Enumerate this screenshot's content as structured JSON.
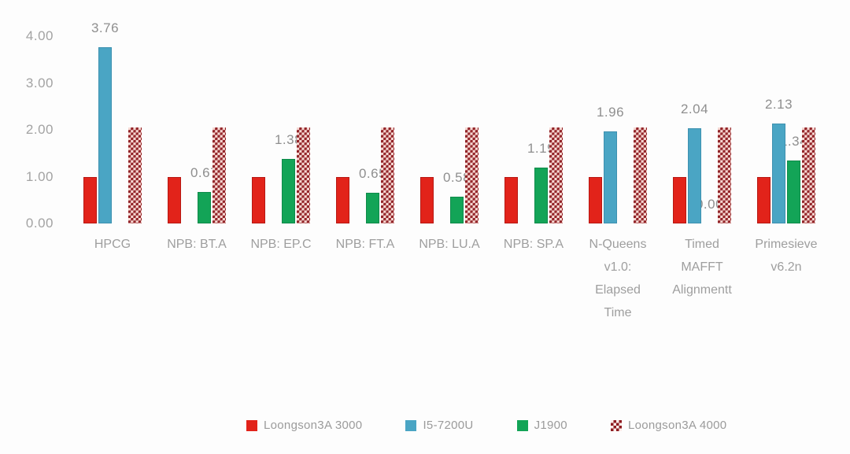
{
  "chart_data": {
    "type": "bar",
    "title": "",
    "xlabel": "",
    "ylabel": "",
    "ylim": [
      0,
      4
    ],
    "yticks": [
      "0.00",
      "1.00",
      "2.00",
      "3.00",
      "4.00"
    ],
    "grid": false,
    "legend_position": "bottom",
    "categories": [
      "HPCG",
      "NPB: BT.A",
      "NPB: EP.C",
      "NPB: FT.A",
      "NPB: LU.A",
      "NPB: SP.A",
      "N-Queens v1.0: Elapsed Time",
      "Timed MAFFT Alignmentt",
      "Primesieve v6.2n"
    ],
    "category_lines": [
      [
        "HPCG"
      ],
      [
        "NPB: BT.A"
      ],
      [
        "NPB: EP.C"
      ],
      [
        "NPB: FT.A"
      ],
      [
        "NPB: LU.A"
      ],
      [
        "NPB: SP.A"
      ],
      [
        "N-Queens",
        "v1.0:",
        "Elapsed",
        "Time"
      ],
      [
        "Timed",
        "MAFFT",
        "Alignmentt"
      ],
      [
        "Primesieve",
        "v6.2n"
      ]
    ],
    "series": [
      {
        "name": "Loongson3A 3000",
        "color": "#e2231a",
        "pattern": "solid-red",
        "values": [
          1.0,
          1.0,
          1.0,
          1.0,
          1.0,
          1.0,
          1.0,
          1.0,
          1.0
        ],
        "labels": [
          null,
          null,
          null,
          null,
          null,
          null,
          null,
          null,
          null
        ]
      },
      {
        "name": "I5-7200U",
        "color": "#4aa5c4",
        "pattern": "solid-blue",
        "values": [
          3.76,
          null,
          null,
          null,
          null,
          null,
          1.96,
          2.04,
          2.13
        ],
        "labels": [
          "3.76",
          null,
          null,
          null,
          null,
          null,
          "1.96",
          "2.04",
          "2.13"
        ]
      },
      {
        "name": "J1900",
        "color": "#13a457",
        "pattern": "solid-green",
        "values": [
          null,
          0.67,
          1.38,
          0.65,
          0.58,
          1.19,
          null,
          0.0,
          1.34
        ],
        "labels": [
          null,
          "0.67",
          "1.38",
          "0.65",
          "0.58",
          "1.19",
          null,
          "0.00",
          "1.34"
        ]
      },
      {
        "name": "Loongson3A 4000",
        "color": "#8e1b20",
        "pattern": "checkered",
        "values": [
          2.05,
          2.05,
          2.05,
          2.05,
          2.05,
          2.05,
          2.05,
          2.05,
          2.05
        ],
        "labels": [
          null,
          null,
          null,
          null,
          null,
          null,
          null,
          null,
          null
        ]
      }
    ]
  },
  "legend": {
    "items": [
      {
        "label": "Loongson3A 3000",
        "swatch": "solid-red"
      },
      {
        "label": "I5-7200U",
        "swatch": "solid-blue"
      },
      {
        "label": "J1900",
        "swatch": "solid-green"
      },
      {
        "label": "Loongson3A 4000",
        "swatch": "checkered"
      }
    ]
  },
  "colors": {
    "red": "#e2231a",
    "blue": "#4aa5c4",
    "green": "#13a457",
    "checkered_dark": "#8e1b20",
    "checkered_light": "#f6d8d3",
    "axis_text": "#a3a3a3",
    "label_text": "#8f8f8f",
    "legend_text": "#9b9b9b",
    "background": "#fdfdfd"
  }
}
